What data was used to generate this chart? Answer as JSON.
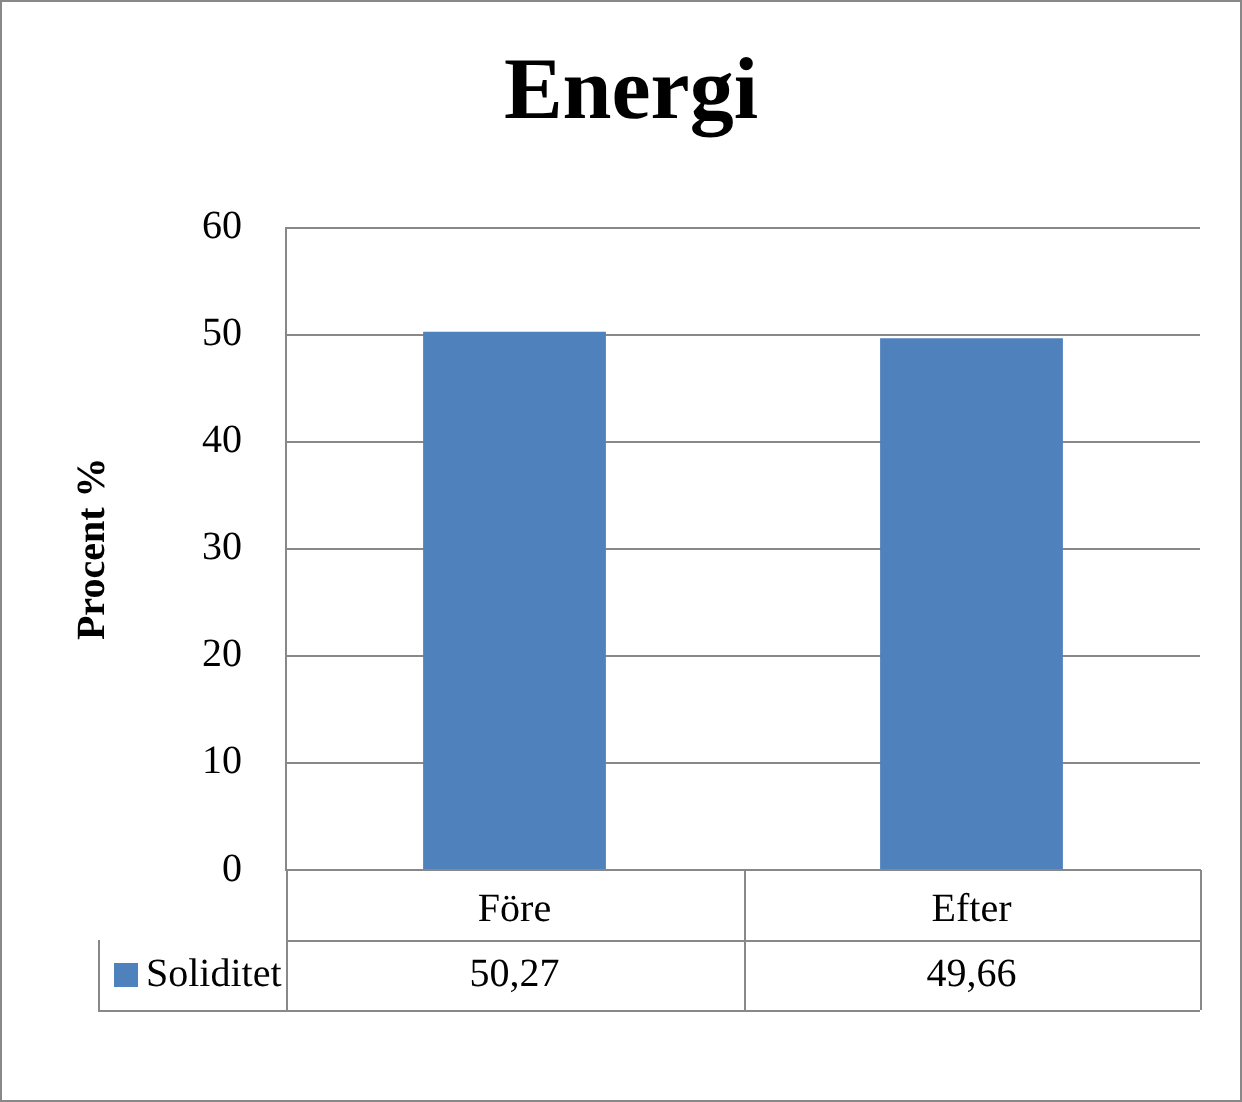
{
  "chart_data": {
    "type": "bar",
    "title": "Energi",
    "ylabel": "Procent %",
    "categories": [
      "Före",
      "Efter"
    ],
    "series": [
      {
        "name": "Soliditet",
        "color": "#4f81bd",
        "values": [
          50.27,
          49.66
        ],
        "value_labels": [
          "50,27",
          "49,66"
        ]
      }
    ],
    "ylim": [
      0,
      60
    ],
    "yticks": [
      0,
      10,
      20,
      30,
      40,
      50,
      60
    ],
    "grid": "y",
    "legend": "bottom"
  }
}
